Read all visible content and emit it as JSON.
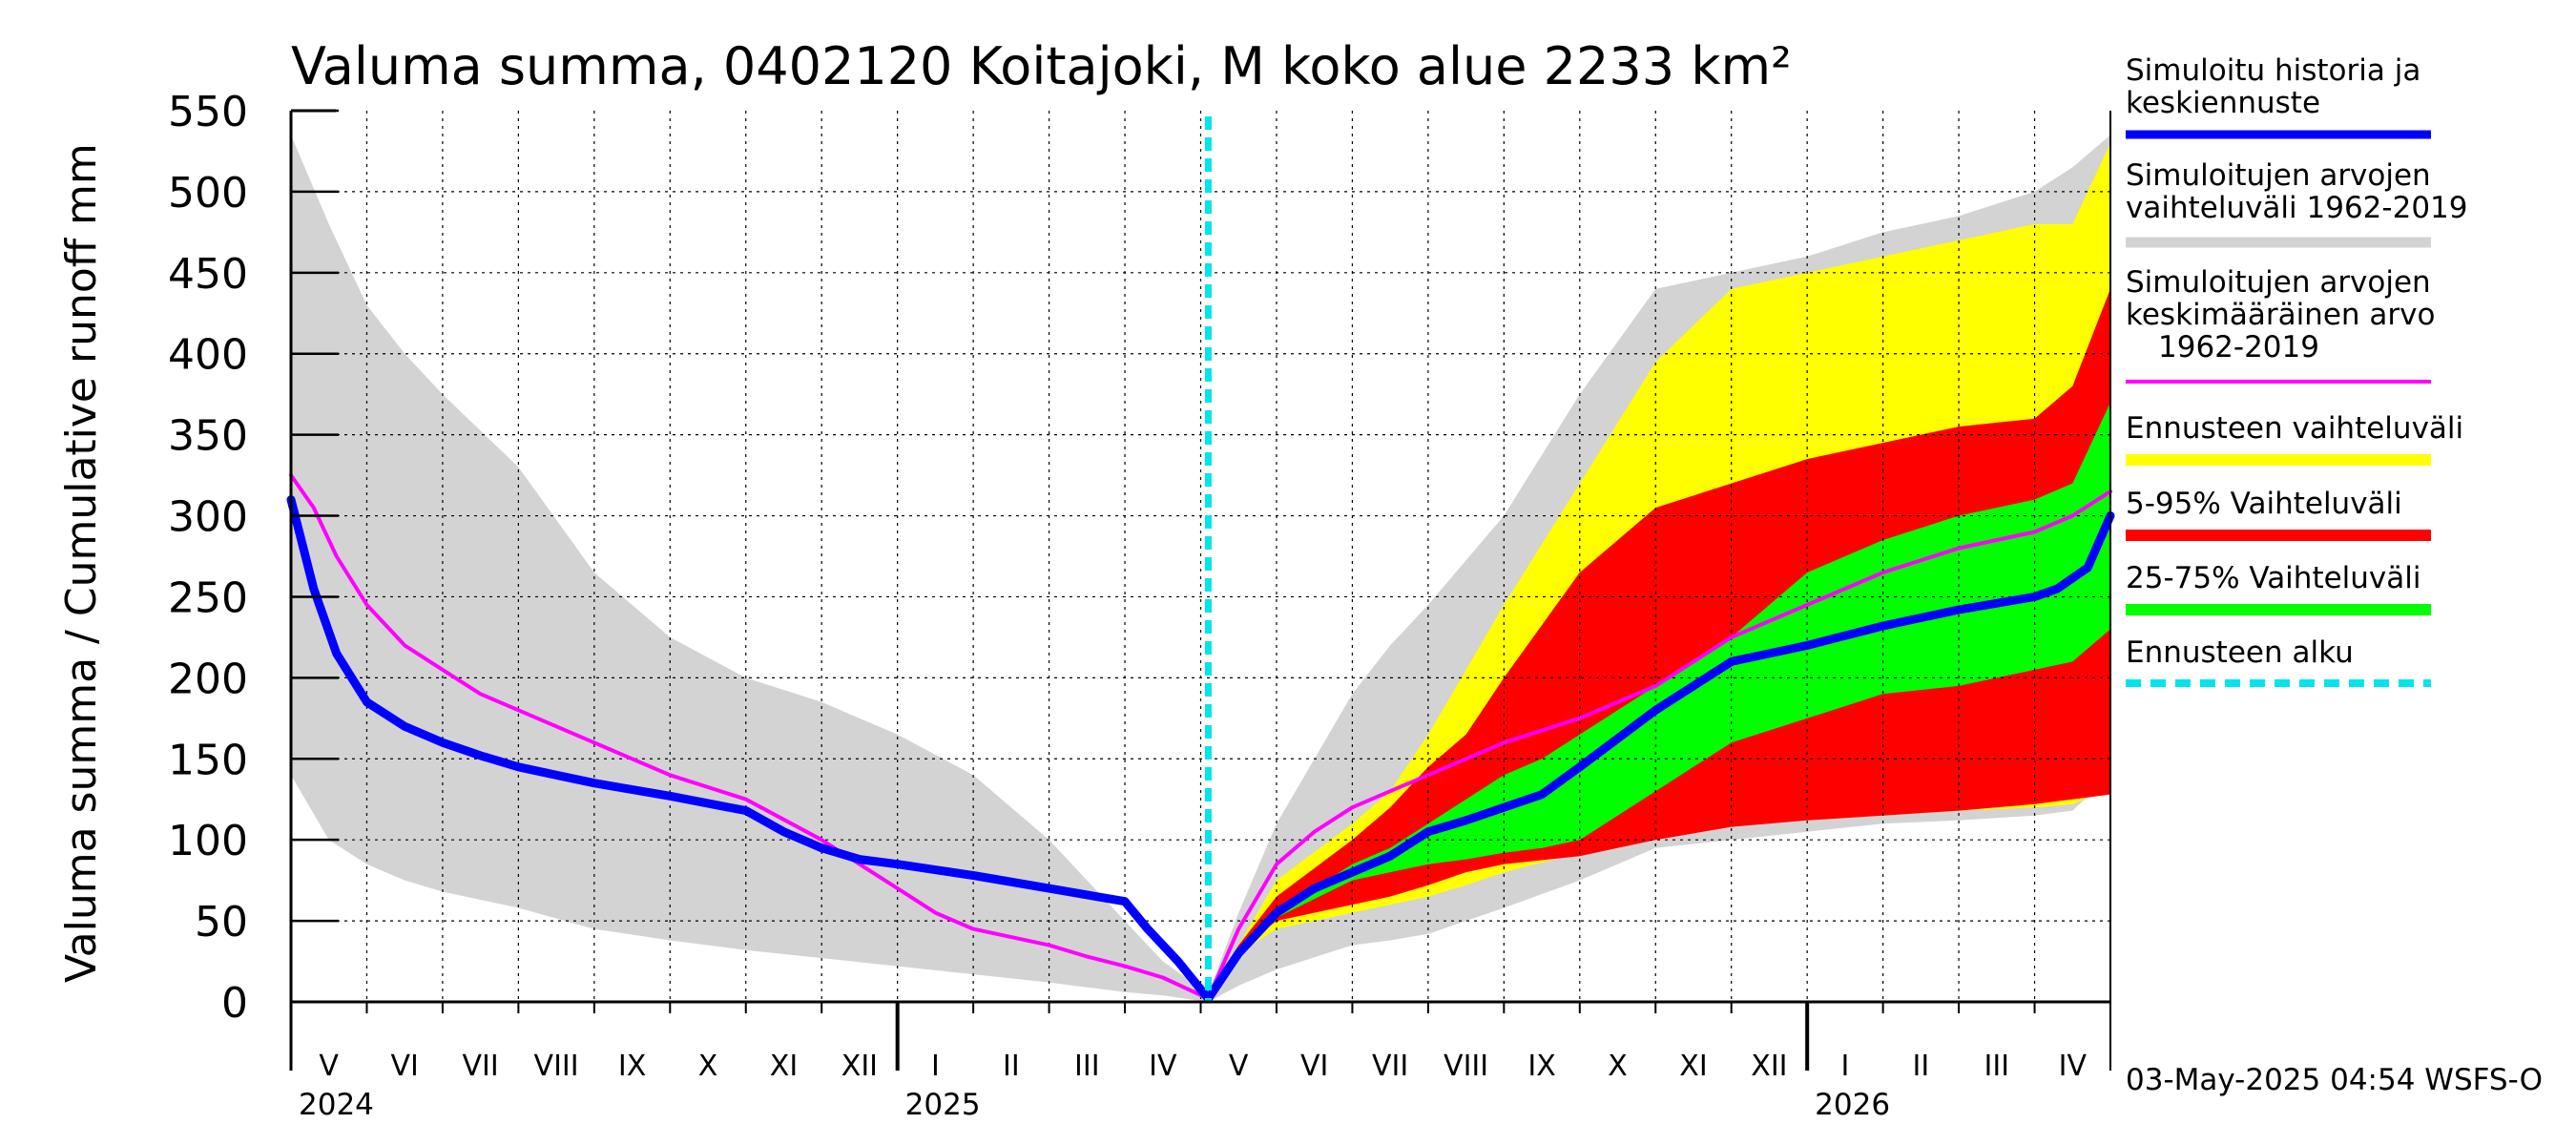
{
  "chart_data": {
    "type": "area",
    "title": "Valuma summa, 0402120 Koitajoki, M koko alue 2233 km²",
    "ylabel": "Valuma summa / Cumulative runoff    mm",
    "ylim": [
      0,
      550
    ],
    "yticks": [
      0,
      50,
      100,
      150,
      200,
      250,
      300,
      350,
      400,
      450,
      500,
      550
    ],
    "x_unit": "months since 2024-05-01",
    "xlim": [
      0,
      24
    ],
    "months": [
      "V",
      "VI",
      "VII",
      "VIII",
      "IX",
      "X",
      "XI",
      "XII",
      "I",
      "II",
      "III",
      "IV",
      "V",
      "VI",
      "VII",
      "VIII",
      "IX",
      "X",
      "XI",
      "XII",
      "I",
      "II",
      "III",
      "IV"
    ],
    "years": [
      {
        "label": "2024",
        "x": 0
      },
      {
        "label": "2025",
        "x": 8
      },
      {
        "label": "2026",
        "x": 20
      }
    ],
    "forecast_start": 12.1,
    "series": [
      {
        "name": "Simuloitujen arvojen vaihteluväli 1962-2019",
        "kind": "band",
        "color": "#d3d3d3",
        "x": [
          0,
          0.5,
          1,
          1.5,
          2,
          3,
          4,
          5,
          6,
          7,
          8,
          9,
          10,
          10.5,
          11,
          11.5,
          12.1,
          12.5,
          13,
          14,
          14.5,
          15,
          16,
          17,
          18,
          19,
          20,
          21,
          22,
          23,
          23.5,
          24
        ],
        "upper": [
          535,
          480,
          430,
          400,
          375,
          330,
          265,
          225,
          200,
          185,
          165,
          140,
          100,
          75,
          50,
          25,
          5,
          55,
          110,
          190,
          220,
          245,
          300,
          375,
          440,
          450,
          460,
          475,
          485,
          500,
          515,
          535
        ],
        "lower": [
          140,
          100,
          85,
          75,
          68,
          58,
          45,
          38,
          32,
          27,
          22,
          17,
          12,
          9,
          6,
          4,
          0,
          10,
          20,
          35,
          38,
          42,
          58,
          75,
          95,
          100,
          105,
          110,
          112,
          115,
          118,
          140
        ]
      },
      {
        "name": "Ennusteen vaihteluväli",
        "kind": "band",
        "color": "#ffff00",
        "x": [
          12.1,
          12.5,
          13,
          14,
          14.5,
          15,
          15.5,
          16,
          17,
          18,
          19,
          20,
          21,
          22,
          23,
          23.5,
          23.8,
          24
        ],
        "upper": [
          5,
          35,
          75,
          110,
          130,
          165,
          205,
          245,
          320,
          395,
          440,
          450,
          460,
          470,
          480,
          480,
          510,
          530
        ],
        "lower": [
          0,
          30,
          45,
          55,
          60,
          65,
          72,
          80,
          92,
          105,
          110,
          112,
          115,
          118,
          120,
          122,
          128,
          165
        ]
      },
      {
        "name": "5-95% Vaihteluväli",
        "kind": "band",
        "color": "#ff0000",
        "x": [
          12.1,
          12.5,
          13,
          14,
          14.5,
          15,
          15.5,
          16,
          17,
          18,
          19,
          20,
          21,
          22,
          23,
          23.5,
          24
        ],
        "upper": [
          5,
          35,
          65,
          100,
          120,
          145,
          165,
          200,
          265,
          305,
          320,
          335,
          345,
          355,
          360,
          380,
          440
        ],
        "lower": [
          0,
          32,
          50,
          60,
          65,
          72,
          80,
          85,
          90,
          100,
          108,
          112,
          115,
          118,
          122,
          125,
          128
        ]
      },
      {
        "name": "25-75% Vaihteluväli",
        "kind": "band",
        "color": "#00ff00",
        "x": [
          12.1,
          12.5,
          13,
          14,
          14.5,
          15,
          15.5,
          16,
          16.5,
          17,
          18,
          19,
          20,
          21,
          22,
          23,
          23.5,
          24
        ],
        "upper": [
          5,
          33,
          55,
          85,
          95,
          110,
          125,
          140,
          150,
          165,
          195,
          225,
          265,
          285,
          300,
          310,
          320,
          370
        ],
        "lower": [
          0,
          32,
          52,
          75,
          80,
          85,
          88,
          92,
          95,
          100,
          130,
          160,
          175,
          190,
          195,
          205,
          210,
          230
        ]
      },
      {
        "name": "Simuloitujen arvojen keskimääräinen arvo 1962-2019",
        "kind": "line",
        "color": "#ff00ff",
        "x": [
          0,
          0.3,
          0.6,
          1,
          1.5,
          2,
          2.5,
          3,
          3.5,
          4,
          5,
          6,
          7,
          7.5,
          8,
          8.5,
          9,
          10,
          10.5,
          11,
          11.5,
          12.1,
          12.5,
          13,
          13.5,
          14,
          14.5,
          15,
          15.5,
          16,
          17,
          18,
          19,
          20,
          21,
          22,
          23,
          23.5,
          24
        ],
        "values": [
          325,
          305,
          275,
          245,
          220,
          205,
          190,
          180,
          170,
          160,
          140,
          125,
          100,
          85,
          70,
          55,
          45,
          35,
          28,
          22,
          15,
          2,
          45,
          85,
          105,
          120,
          130,
          140,
          150,
          160,
          175,
          195,
          225,
          245,
          265,
          280,
          290,
          300,
          315
        ]
      },
      {
        "name": "Simuloitu historia ja keskiennuste",
        "kind": "line",
        "color": "#0000ff",
        "x": [
          0,
          0.3,
          0.6,
          1,
          1.5,
          2,
          2.5,
          3,
          3.5,
          4,
          5,
          6,
          6.5,
          7,
          7.5,
          8,
          9,
          10,
          11,
          11.3,
          11.7,
          12.1,
          12.5,
          13,
          13.5,
          14,
          14.5,
          15,
          15.5,
          16,
          16.5,
          17,
          18,
          19,
          19.5,
          20,
          21,
          22,
          23,
          23.3,
          23.7,
          24
        ],
        "values": [
          310,
          255,
          215,
          185,
          170,
          160,
          152,
          145,
          140,
          135,
          127,
          118,
          105,
          95,
          88,
          85,
          78,
          70,
          62,
          45,
          25,
          2,
          30,
          55,
          70,
          80,
          90,
          105,
          112,
          120,
          128,
          145,
          180,
          210,
          215,
          220,
          232,
          242,
          250,
          255,
          268,
          300
        ]
      }
    ],
    "forecast_marker": {
      "name": "Ennusteen alku",
      "color": "#00e5ee",
      "style": "dashed"
    },
    "legend_position": "right",
    "legend": [
      {
        "label": "Simuloitu historia ja keskiennuste",
        "color": "#0000ff"
      },
      {
        "label": "Simuloitujen arvojen vaihteluväli 1962-2019",
        "color": "#d3d3d3"
      },
      {
        "label": "Simuloitujen arvojen keskimääräinen arvo 1962-2019",
        "color": "#ff00ff"
      },
      {
        "label": "Ennusteen vaihteluväli",
        "color": "#ffff00"
      },
      {
        "label": "5-95% Vaihteluväli",
        "color": "#ff0000"
      },
      {
        "label": "25-75% Vaihteluväli",
        "color": "#00ff00"
      },
      {
        "label": "Ennusteen alku",
        "color": "#00e5ee"
      }
    ],
    "grid": true
  },
  "legend_text": {
    "l1a": "Simuloitu historia ja",
    "l1b": "keskiennuste",
    "l2a": "Simuloitujen arvojen",
    "l2b": "vaihteluväli 1962-2019",
    "l3a": "Simuloitujen arvojen",
    "l3b": "keskimääräinen arvo",
    "l3c": "1962-2019",
    "l4": "Ennusteen vaihteluväli",
    "l5": "5-95% Vaihteluväli",
    "l6": "25-75% Vaihteluväli",
    "l7": "Ennusteen alku"
  },
  "footer": {
    "timestamp": "03-May-2025 04:54 WSFS-O"
  }
}
